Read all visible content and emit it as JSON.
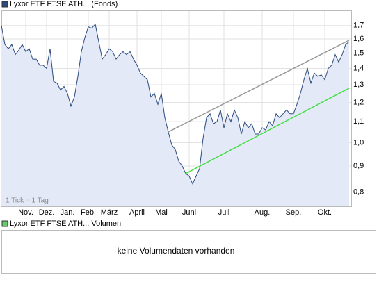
{
  "chart_data": {
    "type": "line",
    "log_scale": true,
    "grid": true,
    "annotation": "1 Tick = 1 Tag",
    "categories": [
      null,
      null,
      null,
      null,
      null,
      null,
      null,
      "Nov.",
      null,
      null,
      null,
      null,
      null,
      "Dez.",
      null,
      null,
      null,
      null,
      null,
      "Jan.",
      null,
      null,
      null,
      null,
      null,
      "Feb.",
      null,
      null,
      null,
      null,
      null,
      "März",
      null,
      null,
      null,
      null,
      null,
      null,
      null,
      "April",
      null,
      null,
      null,
      null,
      null,
      null,
      "Mai",
      null,
      null,
      null,
      null,
      null,
      null,
      null,
      "Juni",
      null,
      null,
      null,
      null,
      null,
      null,
      null,
      null,
      null,
      "Juli",
      null,
      null,
      null,
      null,
      null,
      null,
      null,
      null,
      null,
      null,
      "Aug.",
      null,
      null,
      null,
      null,
      null,
      null,
      null,
      null,
      "Sep.",
      null,
      null,
      null,
      null,
      null,
      null,
      null,
      null,
      "Okt.",
      null,
      null,
      null,
      null,
      null,
      null,
      null
    ],
    "series": [
      {
        "name": "Lyxor ETF FTSE ATH... (Fonds)",
        "color": "#2b4a7e",
        "fill": "#e3e9f7",
        "values": [
          1.7,
          1.56,
          1.53,
          1.56,
          1.49,
          1.52,
          1.56,
          1.51,
          1.53,
          1.46,
          1.46,
          1.42,
          1.42,
          1.4,
          1.53,
          1.32,
          1.31,
          1.27,
          1.29,
          1.25,
          1.18,
          1.23,
          1.35,
          1.51,
          1.61,
          1.69,
          1.68,
          1.71,
          1.58,
          1.46,
          1.49,
          1.53,
          1.51,
          1.46,
          1.49,
          1.51,
          1.49,
          1.51,
          1.46,
          1.42,
          1.37,
          1.35,
          1.33,
          1.23,
          1.25,
          1.19,
          1.25,
          1.12,
          1.05,
          0.99,
          0.97,
          0.92,
          0.9,
          0.87,
          0.86,
          0.83,
          0.86,
          0.89,
          1.02,
          1.12,
          1.14,
          1.09,
          1.1,
          1.16,
          1.07,
          1.14,
          1.1,
          1.16,
          1.12,
          1.04,
          1.1,
          1.07,
          1.09,
          1.04,
          1.04,
          1.07,
          1.06,
          1.1,
          1.08,
          1.14,
          1.12,
          1.14,
          1.16,
          1.14,
          1.14,
          1.19,
          1.25,
          1.33,
          1.4,
          1.31,
          1.37,
          1.35,
          1.36,
          1.33,
          1.4,
          1.42,
          1.49,
          1.44,
          1.49,
          1.56,
          1.58
        ]
      }
    ],
    "trendlines": [
      {
        "color": "#999999",
        "x": [
          48,
          100
        ],
        "values": [
          1.05,
          1.59
        ]
      },
      {
        "color": "#44dd44",
        "x": [
          53,
          100
        ],
        "values": [
          0.87,
          1.28
        ]
      }
    ],
    "ylim": [
      0.75,
      1.82
    ],
    "yticks": [
      {
        "value": 0.8,
        "label": "0,8"
      },
      {
        "value": 0.9,
        "label": "0,9"
      },
      {
        "value": 1.0,
        "label": "1,0"
      },
      {
        "value": 1.1,
        "label": "1,1"
      },
      {
        "value": 1.2,
        "label": "1,2"
      },
      {
        "value": 1.3,
        "label": "1,3"
      },
      {
        "value": 1.4,
        "label": "1,4"
      },
      {
        "value": 1.5,
        "label": "1,5"
      },
      {
        "value": 1.6,
        "label": "1,6"
      },
      {
        "value": 1.7,
        "label": "1,7"
      }
    ]
  },
  "volume_panel": {
    "title": "Lyxor ETF FTSE ATH... Volumen",
    "color": "#66cc66",
    "message": "keine Volumendaten vorhanden"
  }
}
